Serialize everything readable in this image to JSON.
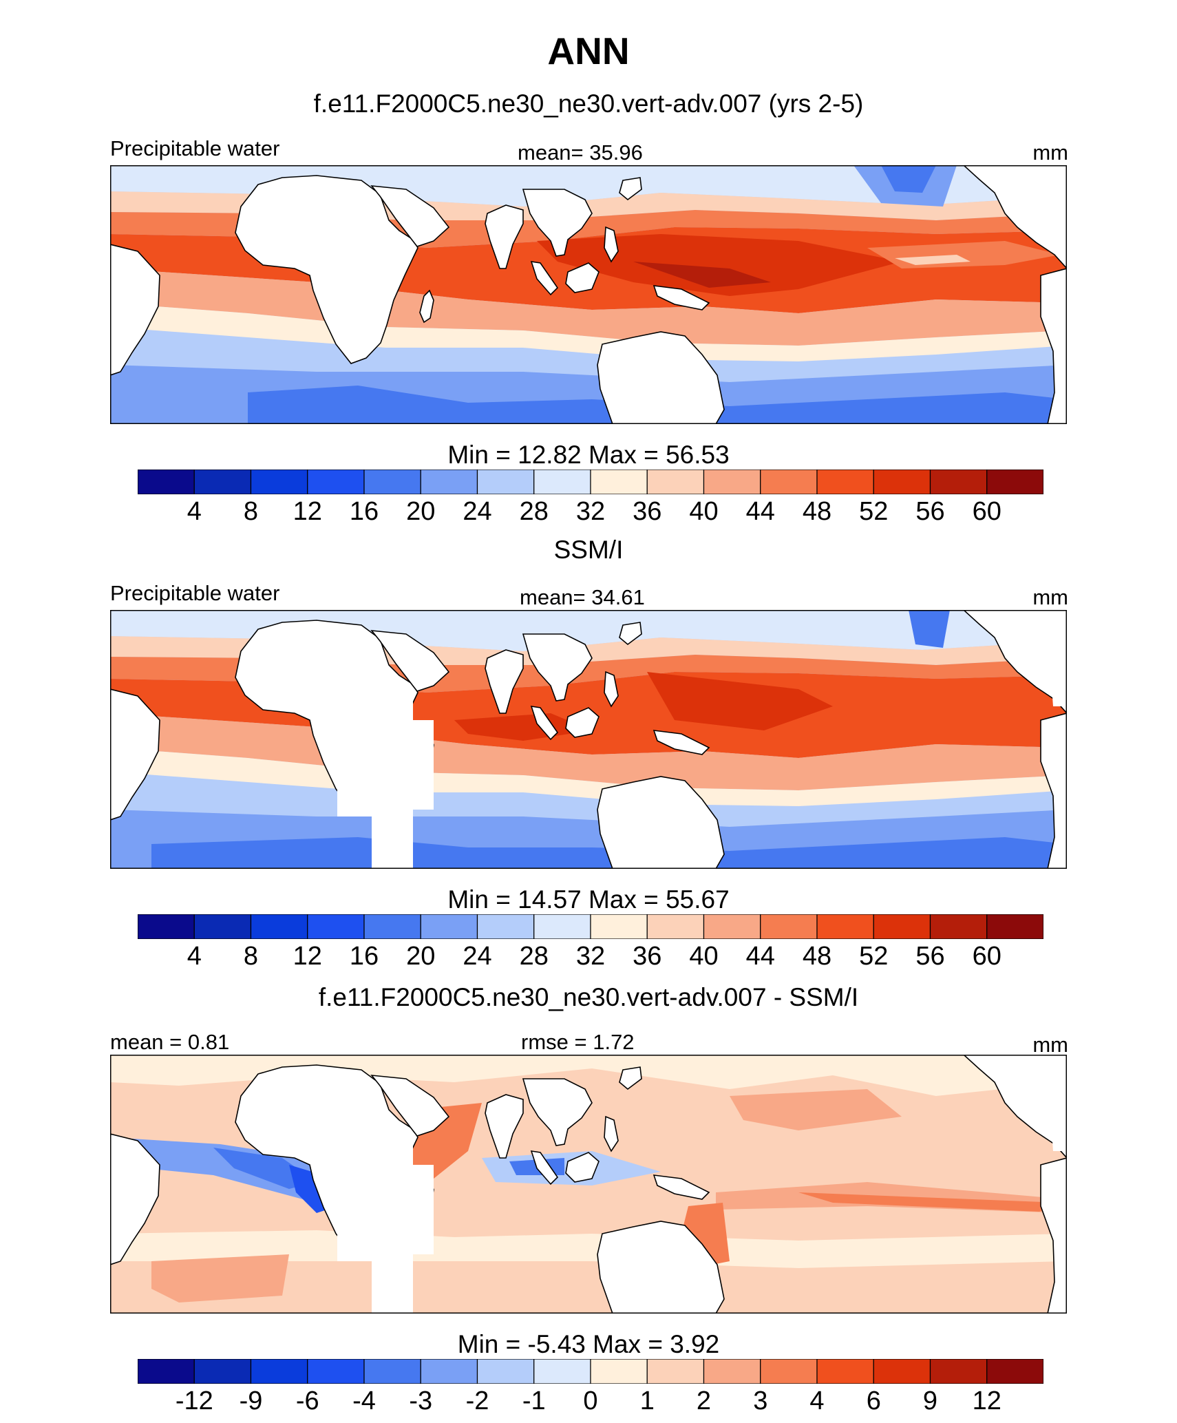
{
  "figure": {
    "title": "ANN",
    "panels": [
      {
        "subtitle": "f.e11.F2000C5.ne30_ne30.vert-adv.007 (yrs 2-5)",
        "left_label": "Precipitable water",
        "center_label": "mean=  35.96",
        "right_label": "mm",
        "minmax_label": "Min =  12.82 Max =  56.53",
        "colorbar": "abs"
      },
      {
        "subtitle": "SSM/I",
        "left_label": "Precipitable water",
        "center_label": "mean=  34.61",
        "right_label": "mm",
        "minmax_label": "Min =  14.57 Max =  55.67",
        "colorbar": "abs"
      },
      {
        "subtitle": "f.e11.F2000C5.ne30_ne30.vert-adv.007 - SSM/I",
        "left_label": "mean =   0.81",
        "center_label": "rmse =   1.72",
        "right_label": "mm",
        "minmax_label": "Min =  -5.43 Max =   3.92",
        "colorbar": "diff"
      }
    ]
  },
  "colorbars": {
    "colors": [
      "#0a0a8c",
      "#0a2ab4",
      "#0a3cdc",
      "#1e50f0",
      "#4678f0",
      "#7aa0f5",
      "#b4cdfa",
      "#dce9fc",
      "#fff0dc",
      "#fcd2b9",
      "#f8a887",
      "#f57d50",
      "#f0501e",
      "#dc320a",
      "#b41e0a",
      "#8c0a0a"
    ],
    "abs": {
      "labels": [
        "4",
        "8",
        "12",
        "16",
        "20",
        "24",
        "28",
        "32",
        "36",
        "40",
        "44",
        "48",
        "52",
        "56",
        "60"
      ]
    },
    "diff": {
      "labels": [
        "-12",
        "-9",
        "-6",
        "-4",
        "-3",
        "-2",
        "-1",
        "0",
        "1",
        "2",
        "3",
        "4",
        "6",
        "9",
        "12"
      ]
    }
  },
  "chart_data": [
    {
      "type": "heatmap",
      "title": "f.e11.F2000C5.ne30_ne30.vert-adv.007 (yrs 2-5)",
      "variable": "Precipitable water",
      "units": "mm",
      "mean": 35.96,
      "min": 12.82,
      "max": 56.53,
      "levels": [
        4,
        8,
        12,
        16,
        20,
        24,
        28,
        32,
        36,
        40,
        44,
        48,
        52,
        56,
        60
      ]
    },
    {
      "type": "heatmap",
      "title": "SSM/I",
      "variable": "Precipitable water",
      "units": "mm",
      "mean": 34.61,
      "min": 14.57,
      "max": 55.67,
      "levels": [
        4,
        8,
        12,
        16,
        20,
        24,
        28,
        32,
        36,
        40,
        44,
        48,
        52,
        56,
        60
      ]
    },
    {
      "type": "heatmap",
      "title": "f.e11.F2000C5.ne30_ne30.vert-adv.007 - SSM/I",
      "units": "mm",
      "mean": 0.81,
      "rmse": 1.72,
      "min": -5.43,
      "max": 3.92,
      "levels": [
        -12,
        -9,
        -6,
        -4,
        -3,
        -2,
        -1,
        0,
        1,
        2,
        3,
        4,
        6,
        9,
        12
      ]
    }
  ]
}
